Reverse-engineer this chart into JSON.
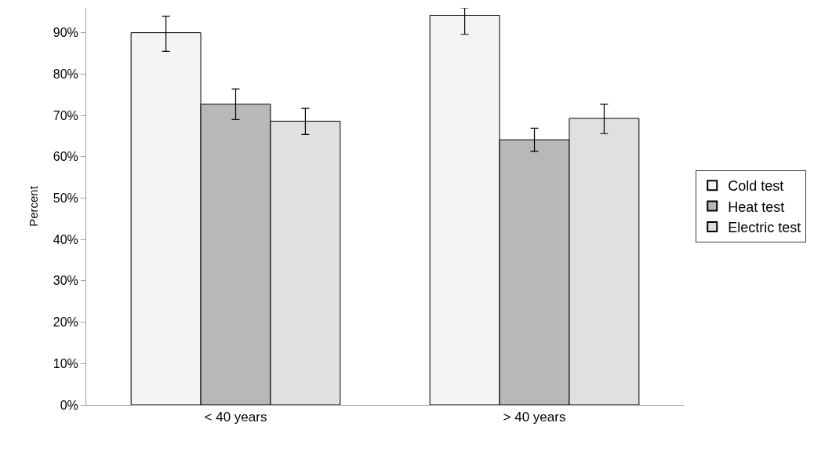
{
  "chart_data": {
    "type": "bar",
    "ylabel": "Percent",
    "categories": [
      "< 40 years",
      "> 40 years"
    ],
    "series": [
      {
        "name": "Cold test",
        "color": "#f4f4f4",
        "values": [
          90.0,
          94.2
        ],
        "errors": [
          [
            85.5,
            94.0
          ],
          [
            89.6,
            96.0
          ]
        ]
      },
      {
        "name": "Heat test",
        "color": "#b8b8b8",
        "values": [
          72.7,
          64.1
        ],
        "errors": [
          [
            69.0,
            76.4
          ],
          [
            61.3,
            66.9
          ]
        ]
      },
      {
        "name": "Electric test",
        "color": "#e0e0e0",
        "values": [
          68.6,
          69.3
        ],
        "errors": [
          [
            65.4,
            71.7
          ],
          [
            65.6,
            72.7
          ]
        ]
      }
    ],
    "ylim": [
      0,
      96
    ],
    "yticks": [
      {
        "value": 0,
        "label": "0%"
      },
      {
        "value": 10,
        "label": "10%"
      },
      {
        "value": 20,
        "label": "20%"
      },
      {
        "value": 30,
        "label": "30%"
      },
      {
        "value": 40,
        "label": "40%"
      },
      {
        "value": 50,
        "label": "50%"
      },
      {
        "value": 60,
        "label": "60%"
      },
      {
        "value": 70,
        "label": "70%"
      },
      {
        "value": 80,
        "label": "80%"
      },
      {
        "value": 90,
        "label": "90%"
      }
    ],
    "legend": "right"
  }
}
